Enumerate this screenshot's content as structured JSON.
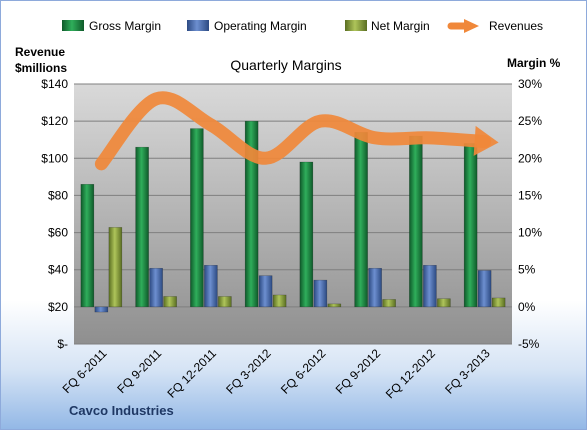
{
  "chart_data": {
    "type": "bar",
    "title": "Quarterly Margins",
    "company": "Cavco Industries",
    "left_axis_title": [
      "Revenue",
      "$millions"
    ],
    "right_axis_title": "Margin %",
    "categories": [
      "FQ 6-2011",
      "FQ 9-2011",
      "FQ 12-2011",
      "FQ 3-2012",
      "FQ 6-2012",
      "FQ 9-2012",
      "FQ 12-2012",
      "FQ 3-2013"
    ],
    "left_axis": {
      "min": 0,
      "max": 140,
      "step": 20,
      "ticks": [
        "$-",
        "$20",
        "$40",
        "$60",
        "$80",
        "$100",
        "$120",
        "$140"
      ]
    },
    "right_axis": {
      "min": -5,
      "max": 30,
      "step": 5,
      "ticks": [
        "-5%",
        "0%",
        "5%",
        "10%",
        "15%",
        "20%",
        "25%",
        "30%"
      ]
    },
    "series": [
      {
        "name": "Gross Margin",
        "type": "bar",
        "axis": "right",
        "color": "#1e8a46",
        "values": [
          16.5,
          21.5,
          24.0,
          25.0,
          19.5,
          23.5,
          23.0,
          22.0
        ]
      },
      {
        "name": "Operating Margin",
        "type": "bar",
        "axis": "right",
        "color": "#4a6fb5",
        "values": [
          -0.7,
          5.2,
          5.6,
          4.2,
          3.6,
          5.2,
          5.6,
          4.9
        ]
      },
      {
        "name": "Net Margin",
        "type": "bar",
        "axis": "right",
        "color": "#8fa83c",
        "values": [
          10.7,
          1.4,
          1.4,
          1.6,
          0.4,
          1.0,
          1.1,
          1.2
        ]
      },
      {
        "name": "Revenues",
        "type": "line",
        "axis": "left",
        "color": "#f0883a",
        "values": [
          97,
          132,
          118,
          100,
          120,
          111,
          111,
          109
        ]
      }
    ],
    "grid": true,
    "legend_position": "top"
  }
}
